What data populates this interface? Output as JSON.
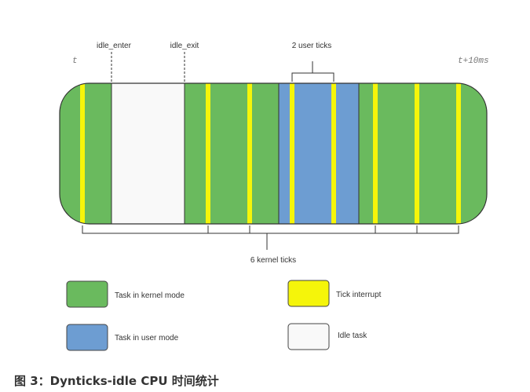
{
  "labels": {
    "t_start": "t",
    "t_end": "t+10ms",
    "idle_enter": "idle_enter",
    "idle_exit": "idle_exit",
    "user_ticks": "2 user ticks",
    "kernel_ticks": "6 kernel ticks"
  },
  "legend": {
    "kernel": "Task in kernel mode",
    "user": "Task in user mode",
    "tick": "Tick interrupt",
    "idle": "Idle task"
  },
  "colors": {
    "kernel": "#6aba5e",
    "user": "#6d9dd2",
    "tick": "#f5f50a",
    "idle": "#f9f9f9",
    "outline": "#333333"
  },
  "caption": "图 3：Dynticks-idle CPU 时间统计"
}
